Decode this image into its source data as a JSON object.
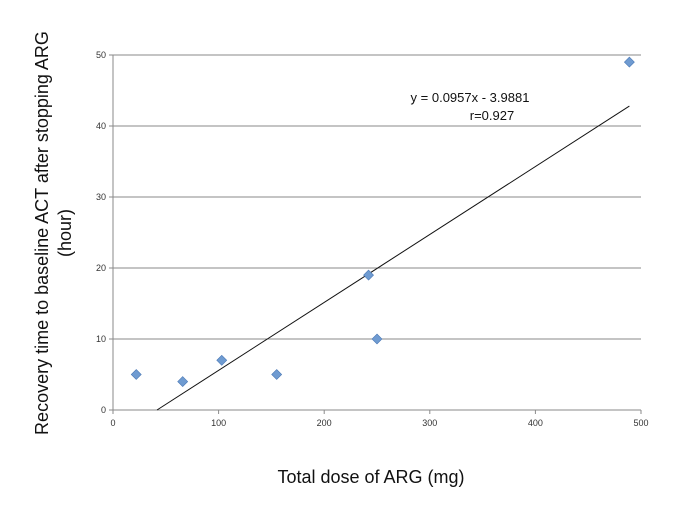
{
  "chart_data": {
    "type": "scatter",
    "title": "",
    "xlabel": "Total dose of ARG (mg)",
    "ylabel_lines": [
      "Recovery time to baseline ACT after stopping ARG",
      "(hour)"
    ],
    "xlim": [
      0,
      500
    ],
    "ylim": [
      0,
      50
    ],
    "x_ticks": [
      0,
      100,
      200,
      300,
      400,
      500
    ],
    "y_ticks": [
      0,
      10,
      20,
      30,
      40,
      50
    ],
    "grid": "horizontal",
    "legend": "none",
    "marker_color": "#6f9bd1",
    "points": [
      {
        "x": 22,
        "y": 5
      },
      {
        "x": 66,
        "y": 4
      },
      {
        "x": 103,
        "y": 7
      },
      {
        "x": 155,
        "y": 5
      },
      {
        "x": 242,
        "y": 19
      },
      {
        "x": 250,
        "y": 10
      },
      {
        "x": 489,
        "y": 49
      }
    ],
    "trendline": {
      "slope": 0.0957,
      "intercept": -3.9881
    },
    "annotations": [
      "y = 0.0957x - 3.9881",
      "r=0.927"
    ]
  }
}
